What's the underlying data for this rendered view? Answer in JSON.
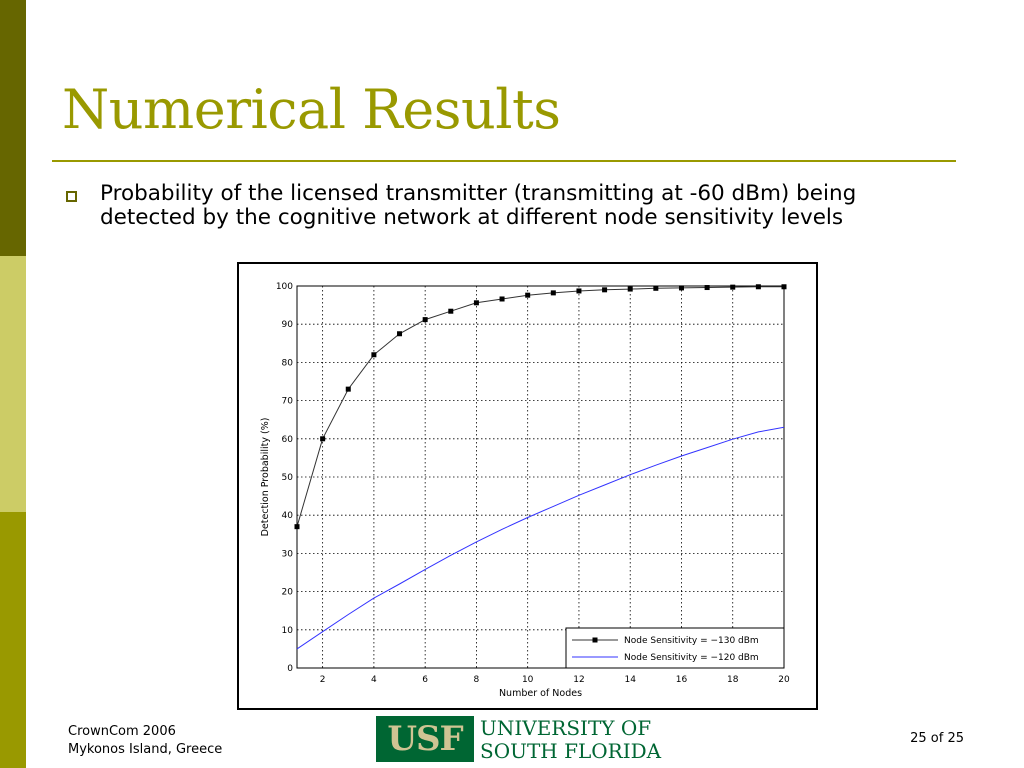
{
  "slide": {
    "title": "Numerical Results",
    "bullet": "Probability of the licensed transmitter (transmitting at -60 dBm) being detected by the cognitive network at different node sensitivity levels",
    "footer_line1": "CrownCom 2006",
    "footer_line2": "Mykonos Island, Greece",
    "page_number": "25 of 25",
    "logo_mark": "USF",
    "logo_line1": "UNIVERSITY OF",
    "logo_line2": "SOUTH FLORIDA",
    "colors": {
      "accent": "#999900",
      "dark_olive": "#666600",
      "light_olive": "#cccc66",
      "usf_green": "#006633",
      "usf_gold": "#cfc493"
    }
  },
  "chart_data": {
    "type": "line",
    "xlabel": "Number of Nodes",
    "ylabel": "Detection Probability (%)",
    "xlim": [
      1,
      20
    ],
    "ylim": [
      0,
      100
    ],
    "x_ticks": [
      2,
      4,
      6,
      8,
      10,
      12,
      14,
      16,
      18,
      20
    ],
    "y_ticks": [
      0,
      10,
      20,
      30,
      40,
      50,
      60,
      70,
      80,
      90,
      100
    ],
    "grid": true,
    "legend_position": "bottom-right",
    "series": [
      {
        "name": "Node Sensitivity = −130 dBm",
        "color": "#333333",
        "marker": "square",
        "x": [
          1,
          2,
          3,
          4,
          5,
          6,
          7,
          8,
          9,
          10,
          11,
          12,
          13,
          14,
          15,
          16,
          17,
          18,
          19,
          20
        ],
        "values": [
          37,
          60,
          73,
          82,
          87.5,
          91.2,
          93.4,
          95.6,
          96.6,
          97.6,
          98.2,
          98.7,
          99.0,
          99.2,
          99.4,
          99.5,
          99.6,
          99.7,
          99.8,
          99.8
        ]
      },
      {
        "name": "Node Sensitivity = −120 dBm",
        "color": "#3333ff",
        "marker": "none",
        "x": [
          1,
          2,
          3,
          4,
          5,
          6,
          7,
          8,
          9,
          10,
          11,
          12,
          13,
          14,
          15,
          16,
          17,
          18,
          19,
          20
        ],
        "values": [
          5,
          9.5,
          14,
          18.3,
          22,
          25.8,
          29.5,
          33,
          36.3,
          39.4,
          42.3,
          45.2,
          47.9,
          50.6,
          53.1,
          55.5,
          57.7,
          59.9,
          61.8,
          63
        ]
      }
    ]
  }
}
